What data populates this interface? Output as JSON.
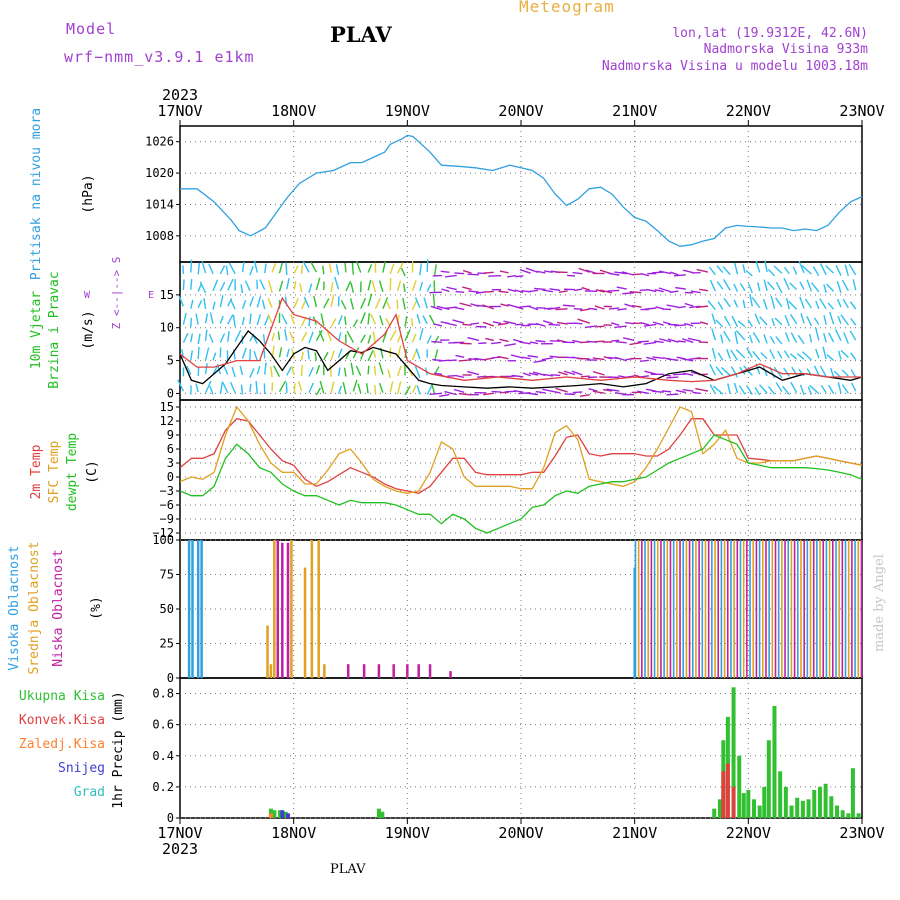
{
  "header": {
    "model_label": "Model",
    "model_name": "wrf−nmm_v3.9.1 e1km",
    "station": "PLAV",
    "kind": "Meteogram",
    "lonlat": "lon,lat (19.9312E, 42.6N)",
    "elevation": "Nadmorska Visina 933m",
    "model_elevation": "Nadmorska Visina u modelu 1003.18m"
  },
  "footer": {
    "station": "PLAV",
    "watermark": "made by Angel"
  },
  "time_axis": {
    "year": "2023",
    "ticks": [
      "17NOV",
      "18NOV",
      "19NOV",
      "20NOV",
      "21NOV",
      "22NOV",
      "23NOV"
    ],
    "range_days": [
      0,
      6
    ]
  },
  "colors": {
    "pressure": "#30a0e0",
    "wind_black": "#000000",
    "wind_red": "#e04040",
    "temp2m": "#e04040",
    "sfc": "#e0a020",
    "dewpt": "#20c020",
    "cloud_high": "#30a0e0",
    "cloud_mid": "#e0a020",
    "cloud_low": "#c020a0",
    "rain_total": "#30c030",
    "rain_conv": "#e04040",
    "rain_frozen": "#ff8030",
    "snow": "#4040d0",
    "hail": "#30c0c0",
    "barbs": [
      "#30c0f0",
      "#30c030",
      "#e0d030",
      "#a020e0",
      "#c02080"
    ]
  },
  "chart_data": [
    {
      "type": "line",
      "panel": "pressure",
      "ylabel_left": "Pritisak na nivou mora",
      "ylabel_right": "(hPa)",
      "ylim": [
        1003,
        1029
      ],
      "yticks": [
        1008,
        1014,
        1020,
        1026
      ],
      "grid": true,
      "series": [
        {
          "name": "",
          "x": [
            0,
            0.15,
            0.3,
            0.45,
            0.52,
            0.62,
            0.75,
            0.85,
            0.95,
            1.05,
            1.2,
            1.35,
            1.5,
            1.6,
            1.7,
            1.8,
            1.85,
            1.9,
            1.95,
            2.0,
            2.05,
            2.2,
            2.3,
            2.45,
            2.6,
            2.75,
            2.9,
            3.0,
            3.1,
            3.2,
            3.3,
            3.4,
            3.5,
            3.6,
            3.7,
            3.8,
            3.9,
            4.0,
            4.1,
            4.2,
            4.3,
            4.4,
            4.5,
            4.6,
            4.7,
            4.8,
            4.9,
            5.0,
            5.1,
            5.2,
            5.3,
            5.4,
            5.5,
            5.6,
            5.7,
            5.8,
            5.9,
            6.0
          ],
          "y": [
            1017,
            1017,
            1014.5,
            1011,
            1009,
            1008,
            1009.5,
            1012.5,
            1015.5,
            1018,
            1020,
            1020.5,
            1022,
            1022,
            1023,
            1024,
            1025.5,
            1026,
            1026.5,
            1027.2,
            1027,
            1024,
            1021.5,
            1021.3,
            1021,
            1020.5,
            1021.5,
            1021,
            1020.5,
            1019,
            1016,
            1013.8,
            1015,
            1017,
            1017.3,
            1016,
            1013.5,
            1011.5,
            1010.8,
            1009,
            1007,
            1006,
            1006.3,
            1007,
            1007.5,
            1009.5,
            1010,
            1009.8,
            1009.7,
            1009.5,
            1009.5,
            1009,
            1009.3,
            1009,
            1010,
            1012.5,
            1014.5,
            1015.5
          ]
        }
      ]
    },
    {
      "type": "line",
      "panel": "wind",
      "ylabel_left": [
        "10m Vjetar",
        "Brzina i Pravac"
      ],
      "ylabel_right": "(m/s)",
      "compass": [
        "Z",
        "<--|-->",
        "S",
        "W",
        "E"
      ],
      "ylim": [
        -1,
        20
      ],
      "yticks": [
        0,
        5,
        10,
        15
      ],
      "grid": true,
      "series": [
        {
          "name": "",
          "x": [
            0,
            0.1,
            0.2,
            0.3,
            0.4,
            0.5,
            0.6,
            0.7,
            0.8,
            0.9,
            1.0,
            1.1,
            1.2,
            1.3,
            1.4,
            1.5,
            1.6,
            1.7,
            1.8,
            1.9,
            2.0,
            2.1,
            2.2,
            2.3,
            2.5,
            2.7,
            2.9,
            3.1,
            3.3,
            3.5,
            3.7,
            3.9,
            4.1,
            4.3,
            4.5,
            4.7,
            4.9,
            5.1,
            5.3,
            5.5,
            5.7,
            5.9,
            6.0
          ],
          "y": [
            6,
            2,
            1.5,
            3,
            4.5,
            7,
            9.5,
            8,
            6,
            3.5,
            6,
            7,
            6.5,
            3.5,
            5,
            6.5,
            6.2,
            7,
            6.5,
            6,
            4,
            2,
            1.5,
            1.2,
            1,
            0.8,
            1,
            0.8,
            1,
            1.2,
            1.5,
            1,
            1.5,
            3,
            3.5,
            2,
            3,
            4,
            2,
            3,
            2.5,
            2,
            2.5
          ]
        },
        {
          "name": "",
          "x": [
            0,
            0.15,
            0.3,
            0.5,
            0.7,
            0.9,
            1.0,
            1.2,
            1.4,
            1.6,
            1.8,
            1.9,
            2.0,
            2.2,
            2.5,
            2.8,
            3.1,
            3.4,
            3.7,
            4.0,
            4.3,
            4.5,
            4.7,
            4.9,
            5.1,
            5.3,
            5.5,
            5.7,
            5.9,
            6.0
          ],
          "y": [
            6,
            4,
            4,
            5,
            5,
            14.5,
            12,
            11,
            8,
            6,
            9,
            12,
            5,
            3,
            2,
            2.5,
            2,
            2.5,
            2,
            2.5,
            2,
            1.8,
            2,
            3,
            4.5,
            3,
            3,
            2.5,
            2.5,
            2.5
          ]
        }
      ]
    },
    {
      "type": "line",
      "panel": "temperature",
      "ylabel_left": [
        "2m Temp",
        "SFC Temp",
        "dewpt Temp"
      ],
      "ylabel_right": "(C)",
      "ylim": [
        -13.5,
        16.5
      ],
      "yticks": [
        -12,
        -9,
        -6,
        -3,
        0,
        3,
        6,
        9,
        12,
        15
      ],
      "grid": true,
      "series": [
        {
          "name": "2m Temp",
          "x": [
            0,
            0.1,
            0.2,
            0.3,
            0.4,
            0.5,
            0.6,
            0.7,
            0.8,
            0.9,
            1.0,
            1.1,
            1.2,
            1.3,
            1.4,
            1.5,
            1.6,
            1.7,
            1.8,
            1.9,
            2.0,
            2.1,
            2.2,
            2.3,
            2.4,
            2.5,
            2.6,
            2.7,
            2.8,
            2.9,
            3.0,
            3.1,
            3.2,
            3.3,
            3.4,
            3.5,
            3.6,
            3.7,
            3.8,
            3.9,
            4.0,
            4.1,
            4.2,
            4.3,
            4.4,
            4.5,
            4.6,
            4.7,
            4.8,
            4.9,
            5.0,
            5.1,
            5.2,
            5.3,
            5.4,
            5.5,
            5.6,
            5.7,
            5.8,
            5.9,
            6.0
          ],
          "y": [
            2,
            4,
            4,
            5,
            10,
            12.5,
            12,
            9,
            6,
            3.5,
            2.5,
            -0.5,
            -2,
            -1,
            0.5,
            2,
            1,
            0,
            -1.5,
            -2.5,
            -3,
            -3.5,
            -2,
            1,
            4,
            4,
            1,
            0.5,
            0.5,
            0.5,
            0.5,
            1,
            1,
            4.5,
            8.5,
            9,
            5,
            4.5,
            5,
            5,
            5,
            4.5,
            4.5,
            6,
            9,
            12.5,
            12.5,
            9,
            9,
            9,
            4,
            3.8,
            3.5,
            3.5,
            3.5,
            4,
            4.5,
            4,
            3.5,
            3,
            2.5
          ]
        },
        {
          "name": "SFC Temp",
          "x": [
            0,
            0.1,
            0.2,
            0.3,
            0.4,
            0.5,
            0.6,
            0.7,
            0.8,
            0.9,
            1.0,
            1.1,
            1.2,
            1.3,
            1.4,
            1.5,
            1.6,
            1.7,
            1.8,
            1.9,
            2.0,
            2.1,
            2.2,
            2.3,
            2.4,
            2.5,
            2.6,
            2.7,
            2.8,
            2.9,
            3.0,
            3.1,
            3.2,
            3.3,
            3.4,
            3.5,
            3.6,
            3.7,
            3.8,
            3.9,
            4.0,
            4.1,
            4.2,
            4.3,
            4.4,
            4.5,
            4.6,
            4.7,
            4.8,
            4.9,
            5.0,
            5.1,
            5.2,
            5.3,
            5.4,
            5.5,
            5.6,
            5.7,
            5.8,
            5.9,
            6.0
          ],
          "y": [
            -1,
            0,
            -0.5,
            1,
            9,
            15,
            12,
            7,
            3,
            1,
            1,
            -1.5,
            -1.5,
            1.5,
            5,
            6,
            3,
            -0.5,
            -2,
            -3,
            -3.5,
            -3,
            1,
            7.5,
            6,
            0,
            -2,
            -2,
            -2,
            -2,
            -2.5,
            -2.5,
            2,
            9.5,
            11,
            8,
            -0.5,
            -1,
            -1.5,
            -2,
            -1,
            2,
            6,
            10.5,
            15,
            14,
            5,
            7,
            10,
            4,
            3,
            3,
            3.5,
            3.5,
            3.5,
            4,
            4.5,
            4,
            3.5,
            3,
            2.5
          ]
        },
        {
          "name": "dewpt Temp",
          "x": [
            0,
            0.1,
            0.2,
            0.3,
            0.4,
            0.5,
            0.6,
            0.7,
            0.8,
            0.9,
            1.0,
            1.1,
            1.2,
            1.3,
            1.4,
            1.5,
            1.6,
            1.7,
            1.8,
            1.9,
            2.0,
            2.1,
            2.2,
            2.3,
            2.4,
            2.5,
            2.6,
            2.7,
            2.8,
            2.9,
            3.0,
            3.1,
            3.2,
            3.3,
            3.4,
            3.5,
            3.6,
            3.7,
            3.8,
            3.9,
            4.0,
            4.1,
            4.2,
            4.3,
            4.4,
            4.5,
            4.6,
            4.7,
            4.8,
            4.9,
            5.0,
            5.1,
            5.2,
            5.3,
            5.4,
            5.5,
            5.6,
            5.7,
            5.8,
            5.9,
            6.0
          ],
          "y": [
            -3,
            -4,
            -4,
            -2,
            4,
            7,
            5,
            2,
            1,
            -1.5,
            -3,
            -4,
            -4,
            -5,
            -6,
            -5,
            -5.5,
            -5.5,
            -5.5,
            -6,
            -7,
            -8,
            -8,
            -10,
            -8,
            -9,
            -11,
            -12,
            -11,
            -10,
            -9,
            -6.5,
            -6,
            -4,
            -3,
            -3.5,
            -2,
            -1.5,
            -1,
            -1,
            -0.5,
            0,
            1.5,
            3,
            4,
            5,
            6,
            9,
            8,
            7,
            3,
            2.5,
            2,
            2,
            2,
            2,
            1.8,
            1.5,
            1,
            0.5,
            -0.5
          ]
        }
      ]
    },
    {
      "type": "bar",
      "panel": "cloud",
      "ylabel_left": [
        "Visoka Oblacnost",
        "Srednja Oblacnost",
        "Niska Oblacnost"
      ],
      "ylabel_right": "(%)",
      "ylim": [
        0,
        100
      ],
      "yticks": [
        0,
        25,
        50,
        75,
        100
      ],
      "grid": true,
      "series": [
        {
          "name": "Visoka Oblacnost",
          "x": [
            0.08,
            0.11,
            0.16,
            0.19,
            4.0
          ],
          "values": [
            100,
            100,
            100,
            100,
            80
          ]
        },
        {
          "name": "Srednja Oblacnost",
          "x": [
            0.77,
            0.8,
            0.83,
            0.98,
            1.1,
            1.16,
            1.22,
            1.27
          ],
          "values": [
            38,
            10,
            100,
            100,
            80,
            100,
            100,
            10
          ]
        },
        {
          "name": "Niska Oblacnost",
          "x": [
            0.86,
            0.9,
            0.95,
            1.48,
            1.62,
            1.75,
            1.88,
            2.0,
            2.1,
            2.2,
            2.38
          ],
          "values": [
            100,
            98,
            98,
            10,
            10,
            10,
            10,
            10,
            10,
            10,
            5
          ]
        }
      ],
      "dense_band": {
        "x_start": 4.0,
        "x_end": 6.0,
        "value": 100
      }
    },
    {
      "type": "bar",
      "panel": "precipitation",
      "ylabel_left": [
        "Ukupna Kisa",
        "Konvek.Kisa",
        "Zaledj.Kisa",
        "Snijeg",
        "Grad"
      ],
      "ylabel_right": "1hr Precip (mm)",
      "ylim": [
        0,
        0.9
      ],
      "yticks": [
        0,
        0.2,
        0.4,
        0.6,
        0.8
      ],
      "grid": true,
      "series": [
        {
          "name": "Ukupna Kisa",
          "x": [
            0.8,
            0.83,
            0.88,
            0.93,
            1.75,
            1.78,
            4.7,
            4.75,
            4.78,
            4.82,
            4.87,
            4.92,
            4.96,
            5.0,
            5.05,
            5.1,
            5.14,
            5.18,
            5.23,
            5.28,
            5.33,
            5.38,
            5.43,
            5.48,
            5.53,
            5.58,
            5.63,
            5.68,
            5.73,
            5.78,
            5.83,
            5.88,
            5.92,
            5.97
          ],
          "values": [
            0.06,
            0.05,
            0.05,
            0.04,
            0.06,
            0.04,
            0.06,
            0.12,
            0.5,
            0.65,
            0.84,
            0.4,
            0.16,
            0.18,
            0.12,
            0.08,
            0.2,
            0.5,
            0.72,
            0.3,
            0.2,
            0.08,
            0.13,
            0.11,
            0.12,
            0.18,
            0.2,
            0.22,
            0.14,
            0.08,
            0.05,
            0.03,
            0.32,
            0.03
          ]
        },
        {
          "name": "Konvek.Kisa",
          "x": [
            4.78,
            4.82,
            4.87
          ],
          "values": [
            0.3,
            0.35,
            0.2
          ]
        },
        {
          "name": "Zaledj.Kisa",
          "x": [
            0.8
          ],
          "values": [
            0.03
          ]
        },
        {
          "name": "Snijeg",
          "x": [
            0.9,
            0.95
          ],
          "values": [
            0.05,
            0.03
          ]
        },
        {
          "name": "Grad",
          "x": [],
          "values": []
        }
      ]
    }
  ]
}
